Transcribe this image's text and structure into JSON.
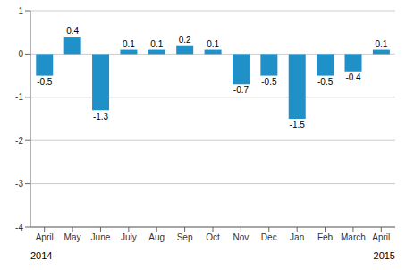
{
  "chart_data": {
    "type": "bar",
    "categories": [
      "April",
      "May",
      "June",
      "July",
      "Aug",
      "Sep",
      "Oct",
      "Nov",
      "Dec",
      "Jan",
      "Feb",
      "March",
      "April"
    ],
    "values": [
      -0.5,
      0.4,
      -1.3,
      0.1,
      0.1,
      0.2,
      0.1,
      -0.7,
      -0.5,
      -1.5,
      -0.5,
      -0.4,
      0.1
    ],
    "color": "#2090c8",
    "ylim": [
      -4,
      1
    ],
    "yticks": [
      -4,
      -3,
      -2,
      -1,
      0,
      1
    ],
    "grid": true,
    "data_labels": true,
    "annotations": [
      "2014",
      "2015"
    ]
  }
}
